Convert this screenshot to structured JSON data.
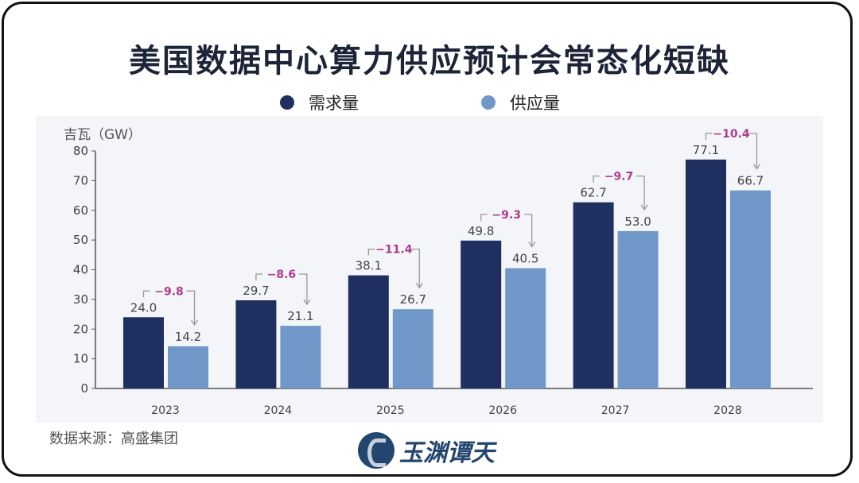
{
  "title": "美国数据中心算力供应预计会常态化短缺",
  "source": "数据来源：高盛集团",
  "logo_text": "玉渊谭天",
  "colors": {
    "demand": "#1f2f5f",
    "supply": "#6f98c9",
    "diff": "#b03a8a",
    "panel": "#f4f5f9"
  },
  "chart_data": {
    "type": "bar",
    "ylabel": "吉瓦（GW）",
    "ylim": [
      0,
      80
    ],
    "yticks": [
      0,
      10,
      20,
      30,
      40,
      50,
      60,
      70,
      80
    ],
    "categories": [
      "2023",
      "2024",
      "2025",
      "2026",
      "2027",
      "2028"
    ],
    "series": [
      {
        "name": "需求量",
        "values": [
          24.0,
          29.7,
          38.1,
          49.8,
          62.7,
          77.1
        ],
        "labels": [
          "24.0",
          "29.7",
          "38.1",
          "49.8",
          "62.7",
          "77.1"
        ]
      },
      {
        "name": "供应量",
        "values": [
          14.2,
          21.1,
          26.7,
          40.5,
          53.0,
          66.7
        ],
        "labels": [
          "14.2",
          "21.1",
          "26.7",
          "40.5",
          "53.0",
          "66.7"
        ]
      }
    ],
    "differences": [
      "−9.8",
      "−8.6",
      "−11.4",
      "−9.3",
      "−9.7",
      "−10.4"
    ],
    "legend": "top",
    "grid": false
  }
}
